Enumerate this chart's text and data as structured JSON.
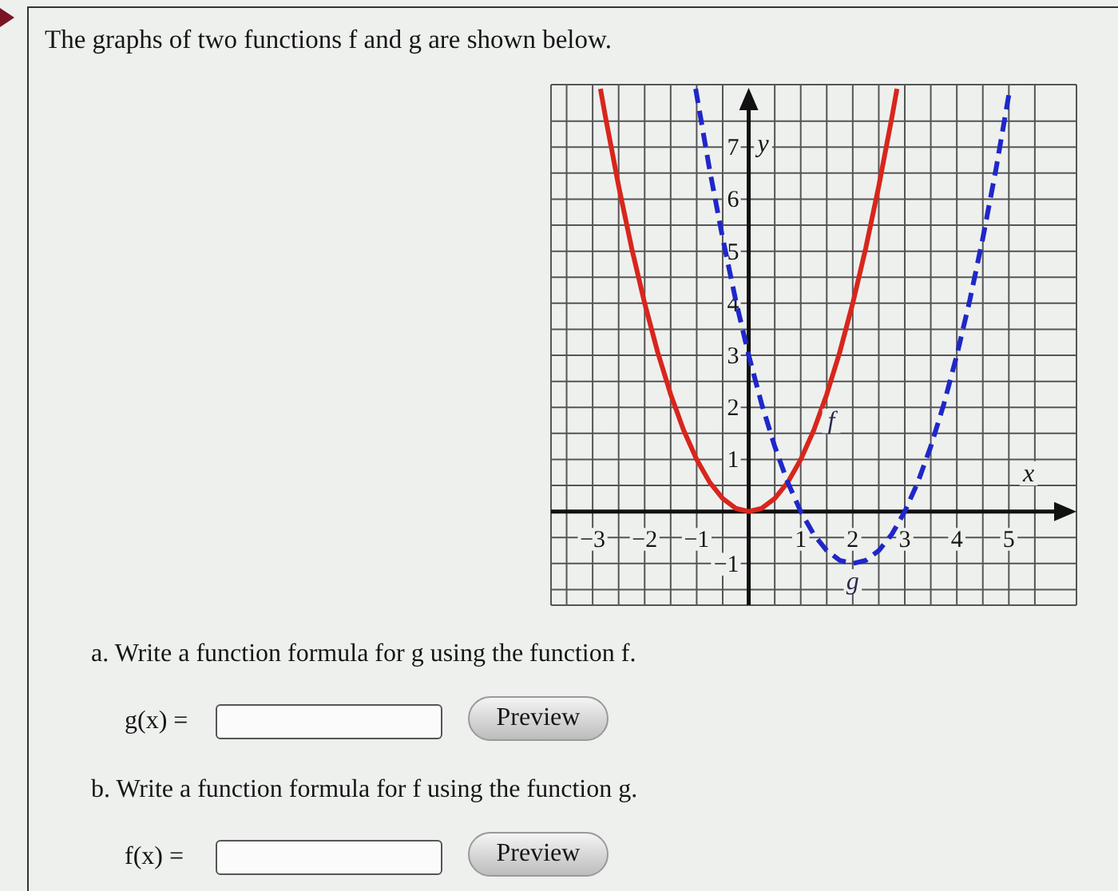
{
  "chart_data": {
    "type": "line",
    "title": "The graphs of two functions f and g are shown below.",
    "xlabel": "x",
    "ylabel": "y",
    "xlim": [
      -3.8,
      6.3
    ],
    "ylim": [
      -1.8,
      8.2
    ],
    "xticks": [
      {
        "value": -3.5,
        "label": null
      },
      {
        "value": -3,
        "label": "−3"
      },
      {
        "value": -2.5,
        "label": null
      },
      {
        "value": -2,
        "label": "−2"
      },
      {
        "value": -1.5,
        "label": null
      },
      {
        "value": -1,
        "label": "−1"
      },
      {
        "value": -0.5,
        "label": null
      },
      {
        "value": 0.5,
        "label": null
      },
      1,
      {
        "value": 1.5,
        "label": null
      },
      2,
      {
        "value": 2.5,
        "label": null
      },
      3,
      {
        "value": 3.5,
        "label": null
      },
      4,
      {
        "value": 4.5,
        "label": null
      },
      5,
      {
        "value": 5.5,
        "label": null
      }
    ],
    "yticks": [
      {
        "value": -1.5,
        "label": null
      },
      {
        "value": -1,
        "label": "−1"
      },
      {
        "value": -0.5,
        "label": null
      },
      {
        "value": 0.5,
        "label": null
      },
      1,
      {
        "value": 1.5,
        "label": null
      },
      2,
      {
        "value": 2.5,
        "label": null
      },
      3,
      {
        "value": 3.5,
        "label": null
      },
      4,
      {
        "value": 4.5,
        "label": null
      },
      5,
      {
        "value": 5.5,
        "label": null
      },
      6,
      {
        "value": 6.5,
        "label": null
      },
      7,
      {
        "value": 7.5,
        "label": null
      }
    ],
    "grid": true,
    "marker": "none",
    "series": [
      {
        "name": "f",
        "color": "#d8261c",
        "line_style": "solid",
        "x": [
          -2.85,
          -2.75,
          -2.5,
          -2.25,
          -2,
          -1.75,
          -1.5,
          -1.25,
          -1,
          -0.75,
          -0.5,
          -0.25,
          0,
          0.25,
          0.5,
          0.75,
          1,
          1.25,
          1.5,
          1.75,
          2,
          2.25,
          2.5,
          2.75,
          2.85
        ],
        "values": [
          8.12,
          7.56,
          6.25,
          5.06,
          4,
          3.06,
          2.25,
          1.56,
          1,
          0.56,
          0.25,
          0.06,
          0,
          0.06,
          0.25,
          0.56,
          1,
          1.56,
          2.25,
          3.06,
          4,
          5.06,
          6.25,
          7.56,
          8.12
        ]
      },
      {
        "name": "g",
        "color": "#1f27c9",
        "line_style": "dashed",
        "x": [
          -1.02,
          -0.75,
          -0.5,
          -0.25,
          0,
          0.25,
          0.5,
          0.75,
          1,
          1.25,
          1.5,
          1.75,
          2,
          2.25,
          2.5,
          2.75,
          3,
          3.25,
          3.5,
          3.75,
          4,
          4.25,
          4.5,
          4.75,
          5.02
        ],
        "values": [
          8.12,
          6.56,
          5.25,
          4.06,
          3,
          2.06,
          1.25,
          0.56,
          0,
          -0.44,
          -0.75,
          -0.94,
          -1,
          -0.94,
          -0.75,
          -0.44,
          0,
          0.56,
          1.25,
          2.06,
          3,
          4.06,
          5.25,
          6.56,
          8.12
        ]
      }
    ],
    "annotations": [
      "a. Write a function formula for g using the function f.",
      "g(x) =",
      "Preview",
      "b. Write a function formula for f using the function g.",
      "f(x) =",
      "Preview"
    ]
  }
}
